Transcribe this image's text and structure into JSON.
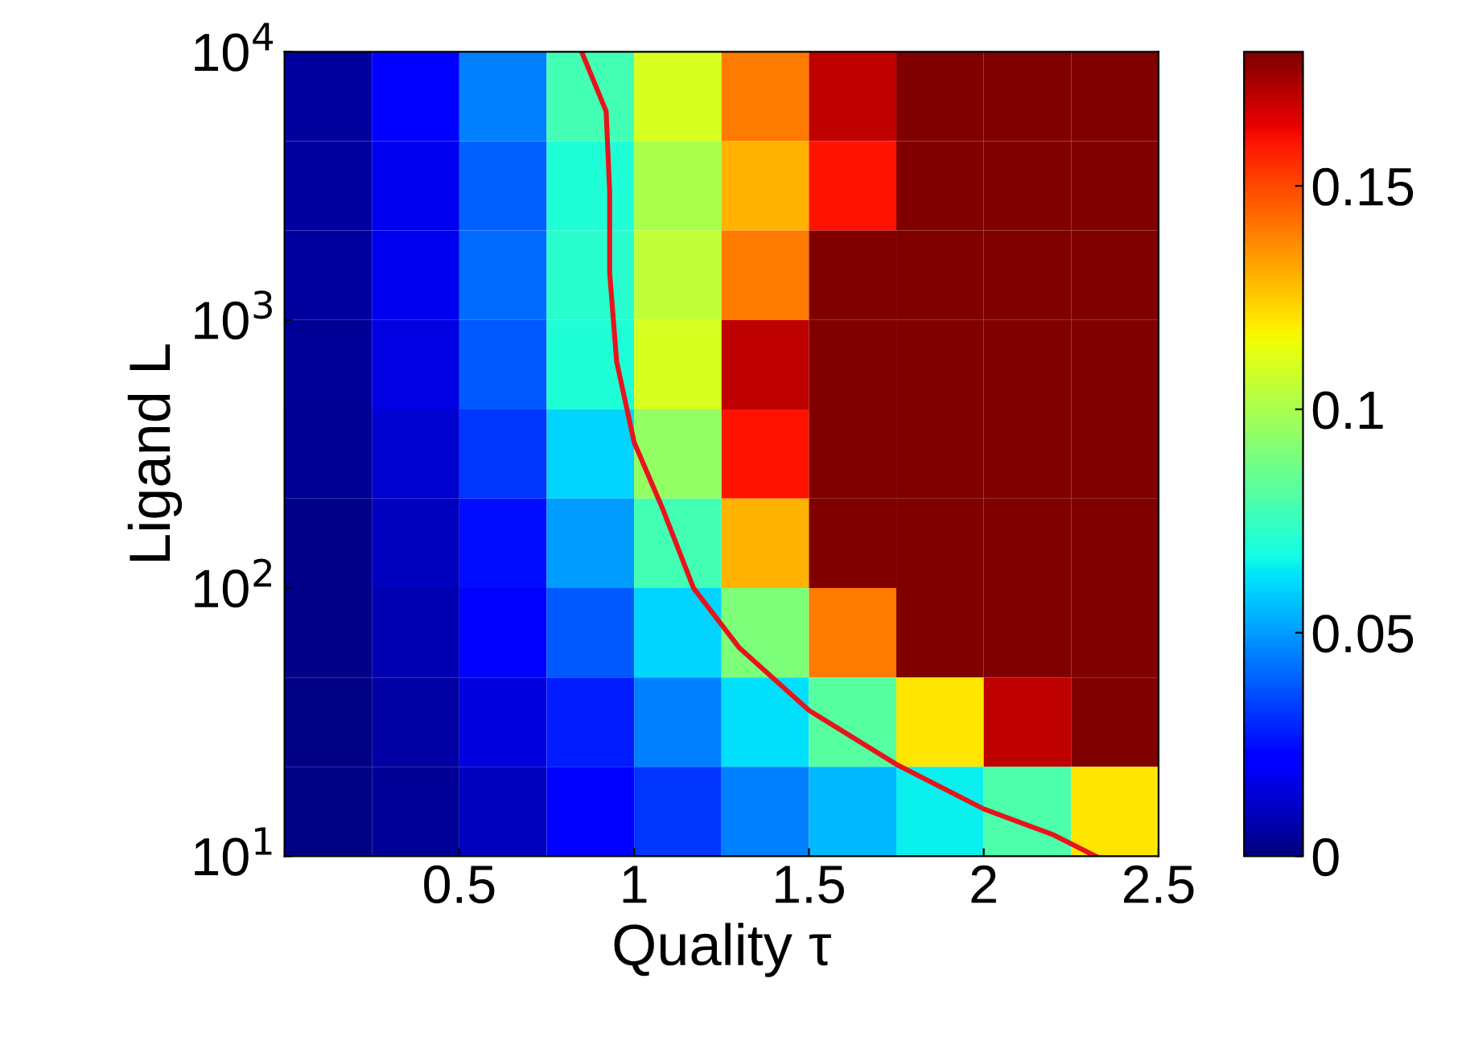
{
  "chart_data": {
    "type": "heatmap",
    "xlabel": "Quality τ",
    "ylabel": "Ligand L",
    "log": "y",
    "x": [
      0.125,
      0.375,
      0.625,
      0.875,
      1.125,
      1.375,
      1.625,
      1.875,
      2.125,
      2.375
    ],
    "y": [
      6813,
      3162,
      1468,
      681,
      316,
      147,
      68.1,
      31.6,
      14.7
    ],
    "cells": [
      [
        0.005,
        0.02,
        0.045,
        0.078,
        0.11,
        0.14,
        0.17,
        0.18,
        0.18,
        0.18
      ],
      [
        0.005,
        0.018,
        0.04,
        0.07,
        0.1,
        0.13,
        0.16,
        0.18,
        0.18,
        0.18
      ],
      [
        0.005,
        0.018,
        0.042,
        0.072,
        0.105,
        0.14,
        0.18,
        0.18,
        0.18,
        0.18
      ],
      [
        0.004,
        0.016,
        0.038,
        0.07,
        0.11,
        0.17,
        0.18,
        0.18,
        0.18,
        0.18
      ],
      [
        0.003,
        0.013,
        0.032,
        0.06,
        0.095,
        0.16,
        0.18,
        0.18,
        0.18,
        0.18
      ],
      [
        0.002,
        0.01,
        0.025,
        0.05,
        0.078,
        0.13,
        0.18,
        0.18,
        0.18,
        0.18
      ],
      [
        0.002,
        0.008,
        0.02,
        0.038,
        0.06,
        0.09,
        0.14,
        0.18,
        0.18,
        0.18
      ],
      [
        0.001,
        0.006,
        0.015,
        0.028,
        0.045,
        0.062,
        0.082,
        0.12,
        0.17,
        0.18
      ],
      [
        0.001,
        0.004,
        0.01,
        0.02,
        0.032,
        0.045,
        0.055,
        0.065,
        0.08,
        0.12
      ]
    ],
    "clim": [
      0,
      0.18
    ],
    "cticks": [
      0,
      0.05,
      0.1,
      0.15
    ],
    "xlim": [
      0,
      2.5
    ],
    "xticks": [
      0.5,
      1,
      1.5,
      2,
      2.5
    ],
    "ylim": [
      10,
      10000
    ],
    "yticks": [
      {
        "value": 10,
        "label": "10$^{1}$"
      },
      {
        "value": 100,
        "label": "10$^{2}$"
      },
      {
        "value": 1000,
        "label": "10$^{3}$"
      },
      {
        "value": 10000,
        "label": "10$^{4}$"
      }
    ],
    "series": [
      {
        "type": "line",
        "color": "#e8141c",
        "x": [
          0.85,
          0.92,
          0.93,
          0.93,
          0.95,
          1.0,
          1.08,
          1.17,
          1.3,
          1.5,
          1.75,
          2.0,
          2.2,
          2.32
        ],
        "values": [
          10000,
          6000,
          3000,
          1500,
          700,
          350,
          200,
          100,
          60,
          35,
          22,
          15,
          12,
          10
        ]
      }
    ]
  }
}
